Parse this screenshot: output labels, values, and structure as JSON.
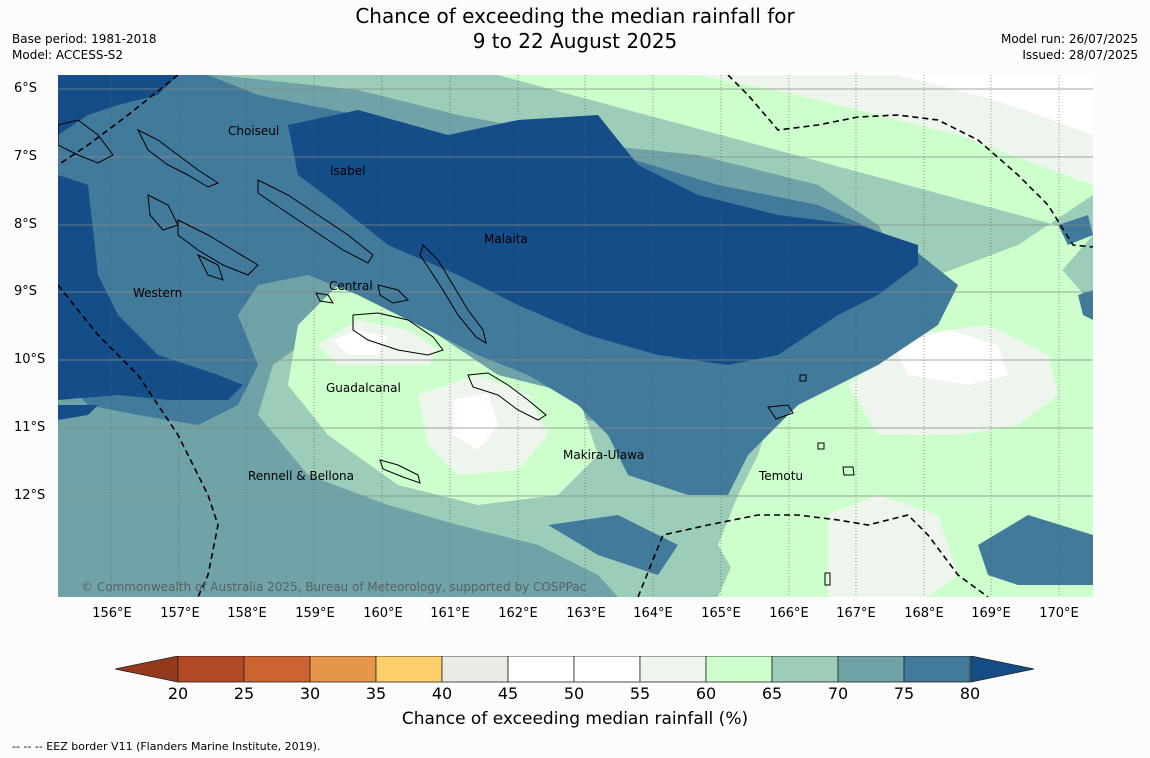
{
  "title_line1": "Chance of exceeding the median rainfall for",
  "title_line2": "9 to 22 August 2025",
  "base_period": "Base period: 1981-2018",
  "model": "Model: ACCESS-S2",
  "model_run": "Model run: 26/07/2025",
  "issued": "Issued: 28/07/2025",
  "lat_labels": [
    "6°S",
    "7°S",
    "8°S",
    "9°S",
    "10°S",
    "11°S",
    "12°S"
  ],
  "lon_labels": [
    "156°E",
    "157°E",
    "158°E",
    "159°E",
    "160°E",
    "161°E",
    "162°E",
    "163°E",
    "164°E",
    "165°E",
    "166°E",
    "167°E",
    "168°E",
    "169°E",
    "170°E"
  ],
  "place_names": {
    "choiseul": "Choiseul",
    "isabel": "Isabel",
    "malaita": "Malaita",
    "western": "Western",
    "central": "Central",
    "guadalcanal": "Guadalcanal",
    "makira": "Makira-Ulawa",
    "rennell": "Rennell & Bellona",
    "temotu": "Temotu"
  },
  "copyright": "© Commonwealth of Australia 2025, Bureau of Meteorology, supported by COSPPac",
  "colorbar": {
    "ticks": [
      "20",
      "25",
      "30",
      "35",
      "40",
      "45",
      "50",
      "55",
      "60",
      "65",
      "70",
      "75",
      "80"
    ],
    "colors": [
      "#b14a24",
      "#cd6331",
      "#e5964a",
      "#fed06b",
      "#ebebe6",
      "#ffffff",
      "#ffffff",
      "#eef5ec",
      "#ccffcc",
      "#9ccdb8",
      "#6fa3a8",
      "#427a9b"
    ],
    "low_extend_color": "#94391c",
    "high_extend_color": "#144d88",
    "title": "Chance of exceeding median rainfall (%)"
  },
  "eez_note": "--  --  -- EEZ border V11 (Flanders Marine Institute, 2019)."
}
